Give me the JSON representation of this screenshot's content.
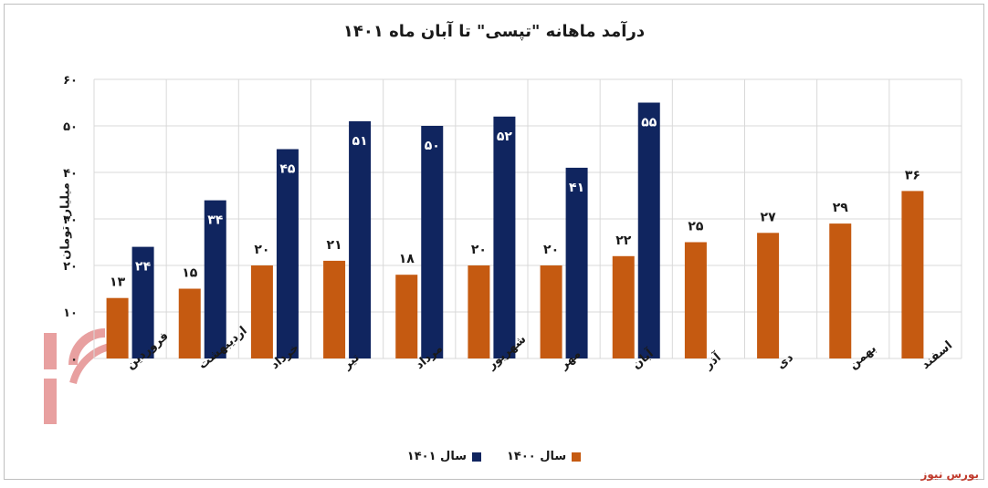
{
  "title": "درآمد ماهانه \"تپسی\" تا آبان ماه ۱۴۰۱",
  "watermark_text": "بورس نیوز",
  "credit": "بورس نیوز",
  "colors": {
    "s1400": "#c55a11",
    "s1401": "#10255f",
    "grid": "#d9d9d9"
  },
  "chart_data": {
    "type": "bar",
    "title": "درآمد ماهانه \"تپسی\" تا آبان ماه ۱۴۰۱",
    "ylabel": "میلیارد تومان",
    "xlabel": "",
    "ylim": [
      0,
      60
    ],
    "yticks": [
      0,
      10,
      20,
      30,
      40,
      50,
      60
    ],
    "ytick_labels": [
      "۰",
      "۱۰",
      "۲۰",
      "۳۰",
      "۴۰",
      "۵۰",
      "۶۰"
    ],
    "grid": true,
    "legend_position": "bottom",
    "categories": [
      "فروردین",
      "اردیبهشت",
      "خرداد",
      "تیر",
      "مرداد",
      "شهریور",
      "مهر",
      "آبان",
      "آذر",
      "دی",
      "بهمن",
      "اسفند"
    ],
    "series": [
      {
        "name": "سال ۱۴۰۰",
        "values": [
          13,
          15,
          20,
          21,
          18,
          20,
          20,
          22,
          25,
          27,
          29,
          36
        ],
        "labels": [
          "۱۳",
          "۱۵",
          "۲۰",
          "۲۱",
          "۱۸",
          "۲۰",
          "۲۰",
          "۲۲",
          "۲۵",
          "۲۷",
          "۲۹",
          "۳۶"
        ]
      },
      {
        "name": "سال ۱۴۰۱",
        "values": [
          24,
          34,
          45,
          51,
          50,
          52,
          41,
          55,
          null,
          null,
          null,
          null
        ],
        "labels": [
          "۲۴",
          "۳۴",
          "۴۵",
          "۵۱",
          "۵۰",
          "۵۲",
          "۴۱",
          "۵۵",
          null,
          null,
          null,
          null
        ]
      }
    ]
  }
}
